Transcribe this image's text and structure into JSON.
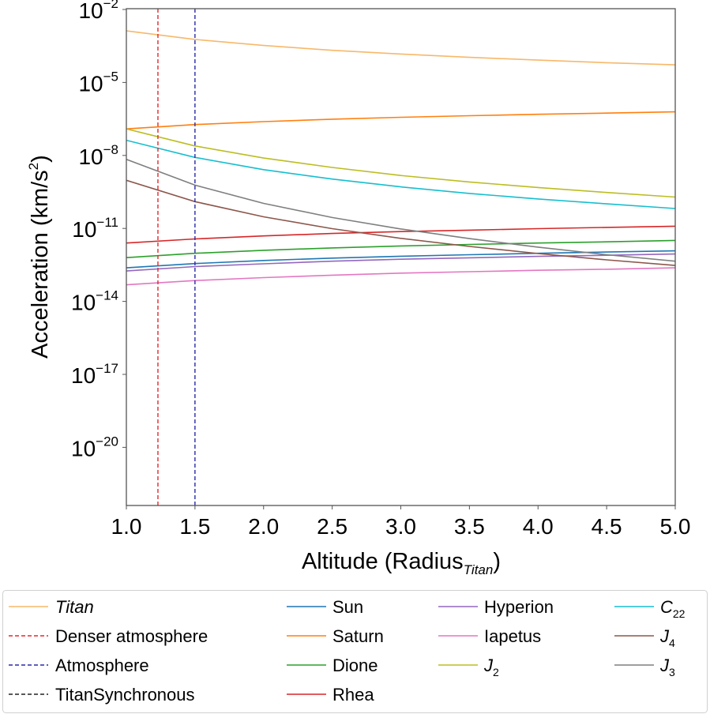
{
  "chart_data": {
    "type": "line",
    "xlabel": {
      "main": "Altitude (Radius",
      "sub": "Titan",
      "close": ")"
    },
    "ylabel": {
      "main": "Acceleration (km/s",
      "sup": "2",
      "close": ")"
    },
    "xlim": [
      1.0,
      5.0
    ],
    "ylim": [
      5e-23,
      0.011
    ],
    "yscale": "log",
    "grid": false,
    "legend_placement": "below",
    "x_ticks": [
      "1.0",
      "1.5",
      "2.0",
      "2.5",
      "3.0",
      "3.5",
      "4.0",
      "4.5",
      "5.0"
    ],
    "y_ticks": [
      {
        "base": "10",
        "exp": "−2",
        "value": -2
      },
      {
        "base": "10",
        "exp": "−5",
        "value": -5
      },
      {
        "base": "10",
        "exp": "−8",
        "value": -8
      },
      {
        "base": "10",
        "exp": "−11",
        "value": -11
      },
      {
        "base": "10",
        "exp": "−14",
        "value": -14
      },
      {
        "base": "10",
        "exp": "−17",
        "value": -17
      },
      {
        "base": "10",
        "exp": "−20",
        "value": -20
      }
    ],
    "x": [
      1.0,
      1.5,
      2.0,
      2.5,
      3.0,
      3.5,
      4.0,
      4.5,
      5.0
    ],
    "vlines": [
      {
        "name": "Denser atmosphere",
        "x": 1.23,
        "color": "#e8262b"
      },
      {
        "name": "Atmosphere",
        "x": 1.5,
        "color": "#2a2aa8"
      },
      {
        "name": "TitanSynchronous",
        "x": null,
        "color": "#222222"
      }
    ],
    "series": [
      {
        "name": "Titan",
        "italic": true,
        "color": "#f7b86a",
        "values": [
          0.00132,
          0.00059,
          0.00033,
          0.00021,
          0.000147,
          0.000108,
          8.3e-05,
          6.5e-05,
          5.3e-05
        ]
      },
      {
        "name": "Sun",
        "color": "#1f77b4",
        "values": [
          2.4e-13,
          3.6e-13,
          4.8e-13,
          6e-13,
          7.2e-13,
          8.3e-13,
          9.5e-13,
          1.07e-12,
          1.2e-12
        ]
      },
      {
        "name": "Saturn",
        "color": "#ff7f0e",
        "values": [
          1.23e-07,
          1.86e-07,
          2.45e-07,
          3.09e-07,
          3.7e-07,
          4.3e-07,
          4.9e-07,
          5.5e-07,
          6.2e-07
        ]
      },
      {
        "name": "Dione",
        "color": "#2ca02c",
        "values": [
          6.3e-13,
          9.5e-13,
          1.26e-12,
          1.58e-12,
          1.9e-12,
          2.2e-12,
          2.5e-12,
          2.8e-12,
          3.2e-12
        ]
      },
      {
        "name": "Rhea",
        "color": "#d62728",
        "values": [
          2.5e-12,
          3.7e-12,
          4.9e-12,
          6.2e-12,
          7.4e-12,
          8.5e-12,
          9.8e-12,
          1.1e-11,
          1.23e-11
        ]
      },
      {
        "name": "Hyperion",
        "color": "#9467bd",
        "values": [
          1.78e-13,
          2.7e-13,
          3.5e-13,
          4.5e-13,
          5.4e-13,
          6.2e-13,
          7.1e-13,
          7.9e-13,
          8.9e-13
        ]
      },
      {
        "name": "Iapetus",
        "color": "#e377c2",
        "values": [
          4.8e-14,
          7.2e-14,
          9.5e-14,
          1.2e-13,
          1.45e-13,
          1.66e-13,
          1.9e-13,
          2.1e-13,
          2.4e-13
        ]
      },
      {
        "name": "J",
        "sub": "2",
        "italic": true,
        "color": "#bcbd22",
        "values": [
          1.23e-07,
          2.45e-08,
          7.8e-09,
          3.2e-09,
          1.5e-09,
          8.1e-10,
          4.8e-10,
          3e-10,
          1.95e-10
        ]
      },
      {
        "name": "C",
        "sub": "22",
        "italic": true,
        "color": "#17becf",
        "values": [
          4.2e-08,
          8.3e-09,
          2.6e-09,
          1.07e-09,
          5.1e-10,
          2.75e-10,
          1.62e-10,
          1.02e-10,
          6.6e-11
        ]
      },
      {
        "name": "J",
        "sub": "4",
        "italic": true,
        "color": "#8c564b",
        "values": [
          9.5e-10,
          1.26e-10,
          3e-11,
          9.8e-12,
          3.9e-12,
          1.82e-12,
          9.3e-13,
          5.1e-13,
          3e-13
        ]
      },
      {
        "name": "J",
        "sub": "3",
        "italic": true,
        "color": "#7f7f7f",
        "values": [
          6.9e-09,
          6e-10,
          1.07e-10,
          2.8e-11,
          9.5e-12,
          3.8e-12,
          1.7e-12,
          8.3e-13,
          4.5e-13
        ]
      }
    ],
    "legend": [
      {
        "kind": "series",
        "index": 0
      },
      {
        "kind": "vline",
        "index": 0
      },
      {
        "kind": "vline",
        "index": 1
      },
      {
        "kind": "vline",
        "index": 2
      },
      {
        "kind": "series",
        "index": 1
      },
      {
        "kind": "series",
        "index": 2
      },
      {
        "kind": "series",
        "index": 3
      },
      {
        "kind": "series",
        "index": 4
      },
      {
        "kind": "series",
        "index": 5
      },
      {
        "kind": "series",
        "index": 6
      },
      {
        "kind": "series",
        "index": 7
      },
      {
        "kind": "series",
        "index": 8
      },
      {
        "kind": "series",
        "index": 9
      },
      {
        "kind": "series",
        "index": 10
      }
    ]
  }
}
